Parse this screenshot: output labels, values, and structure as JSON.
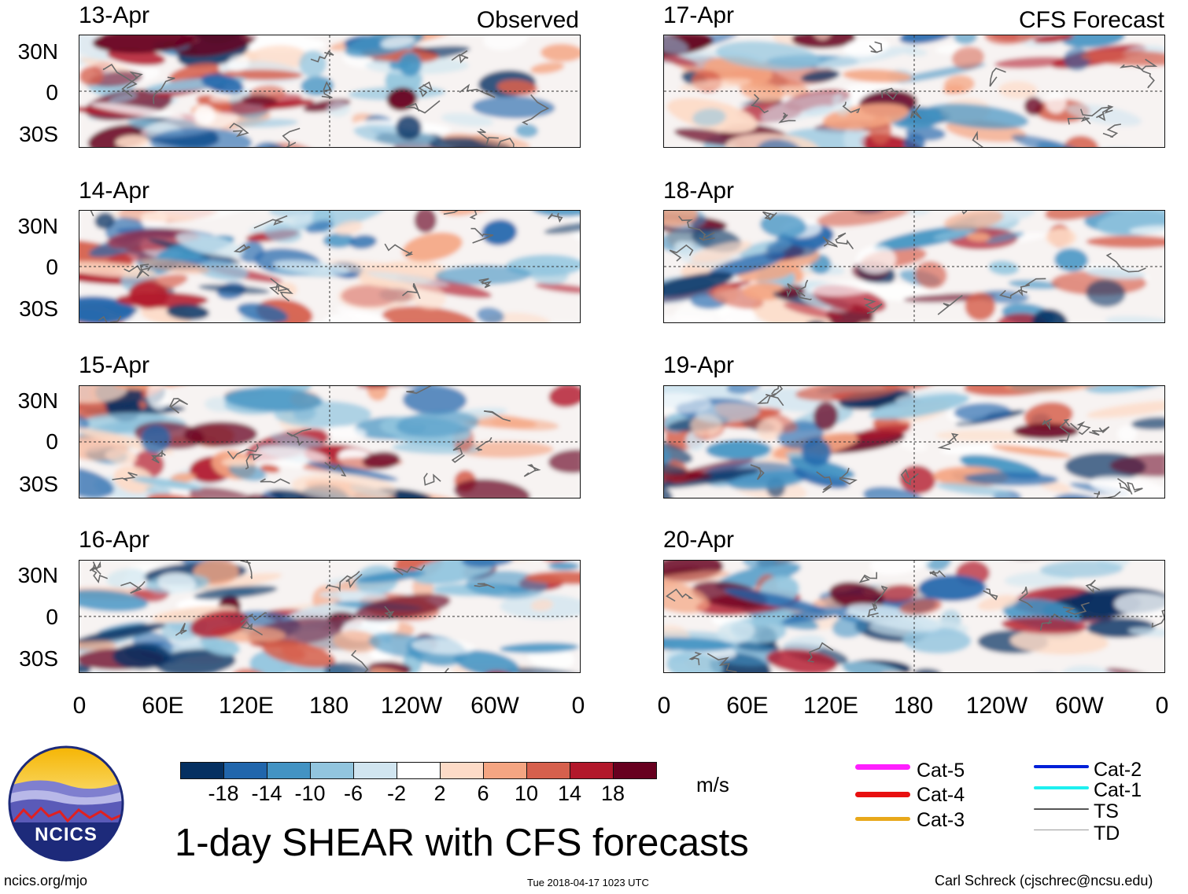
{
  "title": "1-day SHEAR with CFS forecasts",
  "panel_tags": {
    "observed": "Observed",
    "forecast": "CFS Forecast"
  },
  "panels": {
    "observed": [
      "13-Apr",
      "14-Apr",
      "15-Apr",
      "16-Apr"
    ],
    "forecast": [
      "17-Apr",
      "18-Apr",
      "19-Apr",
      "20-Apr"
    ]
  },
  "lat_labels": [
    "30N",
    "0",
    "30S"
  ],
  "lon_labels": [
    "0",
    "60E",
    "120E",
    "180",
    "120W",
    "60W",
    "0"
  ],
  "colorbar": {
    "unit": "m/s",
    "labels": [
      "-18",
      "-14",
      "-10",
      "-6",
      "-2",
      "2",
      "6",
      "10",
      "14",
      "18"
    ],
    "colors": [
      "#053061",
      "#2166ac",
      "#4393c3",
      "#92c5de",
      "#d1e5f0",
      "#ffffff",
      "#fddbc7",
      "#f4a582",
      "#d6604d",
      "#b2182b",
      "#67001f"
    ]
  },
  "legend": [
    {
      "label": "Cat-5",
      "color": "#ff1fff"
    },
    {
      "label": "Cat-4",
      "color": "#e81010"
    },
    {
      "label": "Cat-3",
      "color": "#e8a81a"
    },
    {
      "label": "Cat-2",
      "color": "#0020d8"
    },
    {
      "label": "Cat-1",
      "color": "#1ef0f0"
    },
    {
      "label": "TS",
      "color": "#555555"
    },
    {
      "label": "TD",
      "color": "#999999"
    }
  ],
  "logo": {
    "text": "NCICS"
  },
  "footer": {
    "left": "ncics.org/mjo",
    "center": "Tue 2018-04-17 1023 UTC",
    "right": "Carl Schreck (cjschrec@ncsu.edu)"
  }
}
